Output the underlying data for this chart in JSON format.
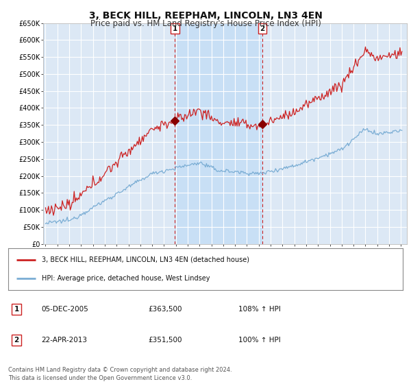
{
  "title": "3, BECK HILL, REEPHAM, LINCOLN, LN3 4EN",
  "subtitle": "Price paid vs. HM Land Registry's House Price Index (HPI)",
  "title_fontsize": 10,
  "subtitle_fontsize": 8.5,
  "background_color": "#ffffff",
  "plot_bg_color": "#dce8f5",
  "grid_color": "#ffffff",
  "shade_color": "#c8dff5",
  "ylim": [
    0,
    650000
  ],
  "yticks": [
    0,
    50000,
    100000,
    150000,
    200000,
    250000,
    300000,
    350000,
    400000,
    450000,
    500000,
    550000,
    600000,
    650000
  ],
  "legend_label_red": "3, BECK HILL, REEPHAM, LINCOLN, LN3 4EN (detached house)",
  "legend_label_blue": "HPI: Average price, detached house, West Lindsey",
  "sale1_date": "05-DEC-2005",
  "sale1_price": "£363,500",
  "sale1_hpi": "108% ↑ HPI",
  "sale2_date": "22-APR-2013",
  "sale2_price": "£351,500",
  "sale2_hpi": "100% ↑ HPI",
  "footnote": "Contains HM Land Registry data © Crown copyright and database right 2024.\nThis data is licensed under the Open Government Licence v3.0.",
  "red_color": "#cc2222",
  "blue_color": "#7aadd4",
  "marker1_x": 2005.92,
  "marker1_y": 363500,
  "marker2_x": 2013.3,
  "marker2_y": 351500,
  "xmin": 1994.8,
  "xmax": 2025.5
}
